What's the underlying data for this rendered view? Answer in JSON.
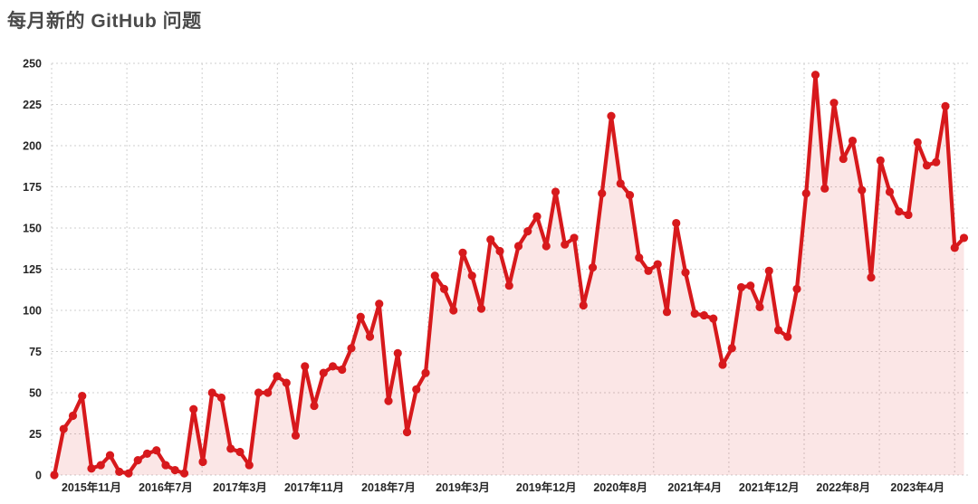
{
  "chart_data": {
    "type": "area",
    "title": "每月新的 GitHub 问题",
    "series_name": "每月新的 GitHub 问题",
    "start_month": "2015-07",
    "end_month": "2023-09",
    "ylim": [
      0,
      250
    ],
    "y_ticks": [
      0,
      25,
      50,
      75,
      100,
      125,
      150,
      175,
      200,
      225,
      250
    ],
    "x_ticks": [
      {
        "i": 4,
        "label": "2015年11月"
      },
      {
        "i": 12,
        "label": "2016年7月"
      },
      {
        "i": 20,
        "label": "2017年3月"
      },
      {
        "i": 28,
        "label": "2017年11月"
      },
      {
        "i": 36,
        "label": "2018年7月"
      },
      {
        "i": 44,
        "label": "2019年3月"
      },
      {
        "i": 53,
        "label": "2019年12月"
      },
      {
        "i": 61,
        "label": "2020年8月"
      },
      {
        "i": 69,
        "label": "2021年4月"
      },
      {
        "i": 77,
        "label": "2021年12月"
      },
      {
        "i": 85,
        "label": "2022年8月"
      },
      {
        "i": 93,
        "label": "2023年4月"
      }
    ],
    "values": [
      0,
      28,
      36,
      48,
      4,
      6,
      12,
      2,
      1,
      9,
      13,
      15,
      6,
      3,
      1,
      40,
      8,
      50,
      47,
      16,
      14,
      6,
      50,
      50,
      60,
      56,
      24,
      66,
      42,
      62,
      66,
      64,
      77,
      96,
      84,
      104,
      45,
      74,
      26,
      52,
      62,
      121,
      113,
      100,
      135,
      121,
      101,
      143,
      136,
      115,
      139,
      148,
      157,
      139,
      172,
      140,
      144,
      103,
      126,
      171,
      218,
      177,
      170,
      132,
      124,
      128,
      99,
      153,
      123,
      98,
      97,
      95,
      67,
      77,
      114,
      115,
      102,
      124,
      88,
      84,
      113,
      171,
      243,
      174,
      226,
      192,
      203,
      173,
      120,
      191,
      172,
      160,
      158,
      202,
      188,
      190,
      224,
      138,
      144
    ],
    "grid": "dotted",
    "legend_position": "none",
    "colors": {
      "line": "#d7191c",
      "fill": "#fae4e5",
      "grid": "#cfcfcf",
      "tick_text": "#262626",
      "title_text": "#4a4a4a",
      "background": "#ffffff"
    }
  }
}
